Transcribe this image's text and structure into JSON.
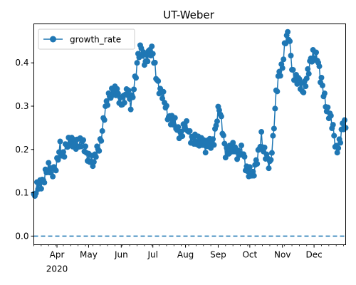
{
  "chart_data": {
    "type": "line",
    "title": "UT-Weber",
    "xlabel": "",
    "ylabel": "",
    "x_start": "2020-03-10",
    "x_end": "2020-12-31",
    "xlim": [
      "2020-03-10",
      "2020-12-31"
    ],
    "ylim": [
      -0.02,
      0.49
    ],
    "grid": false,
    "legend_position": "top-left",
    "x_ticks": [
      {
        "date": "2020-04-01",
        "label": "Apr",
        "sublabel": "2020"
      },
      {
        "date": "2020-05-01",
        "label": "May",
        "sublabel": ""
      },
      {
        "date": "2020-06-01",
        "label": "Jun",
        "sublabel": ""
      },
      {
        "date": "2020-07-01",
        "label": "Jul",
        "sublabel": ""
      },
      {
        "date": "2020-08-01",
        "label": "Aug",
        "sublabel": ""
      },
      {
        "date": "2020-09-01",
        "label": "Sep",
        "sublabel": ""
      },
      {
        "date": "2020-10-01",
        "label": "Oct",
        "sublabel": ""
      },
      {
        "date": "2020-11-01",
        "label": "Nov",
        "sublabel": ""
      },
      {
        "date": "2020-12-01",
        "label": "Dec",
        "sublabel": ""
      }
    ],
    "y_ticks": [
      0.0,
      0.1,
      0.2,
      0.3,
      0.4
    ],
    "y_tick_labels": [
      "0.0",
      "0.1",
      "0.2",
      "0.3",
      "0.4"
    ],
    "reference_line": {
      "y": 0.0,
      "style": "dashed"
    },
    "series": [
      {
        "name": "growth_rate",
        "color": "#1f77b4",
        "marker": "circle",
        "anchors": [
          [
            "2020-03-10",
            0.09
          ],
          [
            "2020-03-14",
            0.11
          ],
          [
            "2020-03-18",
            0.13
          ],
          [
            "2020-03-22",
            0.15
          ],
          [
            "2020-03-27",
            0.15
          ],
          [
            "2020-04-01",
            0.17
          ],
          [
            "2020-04-04",
            0.2
          ],
          [
            "2020-04-06",
            0.18
          ],
          [
            "2020-04-10",
            0.22
          ],
          [
            "2020-04-15",
            0.21
          ],
          [
            "2020-04-20",
            0.22
          ],
          [
            "2020-04-25",
            0.21
          ],
          [
            "2020-04-30",
            0.19
          ],
          [
            "2020-05-03",
            0.18
          ],
          [
            "2020-05-06",
            0.16
          ],
          [
            "2020-05-08",
            0.19
          ],
          [
            "2020-05-12",
            0.22
          ],
          [
            "2020-05-15",
            0.26
          ],
          [
            "2020-05-18",
            0.3
          ],
          [
            "2020-05-21",
            0.33
          ],
          [
            "2020-05-24",
            0.34
          ],
          [
            "2020-05-27",
            0.33
          ],
          [
            "2020-05-31",
            0.31
          ],
          [
            "2020-06-03",
            0.32
          ],
          [
            "2020-06-07",
            0.33
          ],
          [
            "2020-06-10",
            0.3
          ],
          [
            "2020-06-13",
            0.35
          ],
          [
            "2020-06-17",
            0.41
          ],
          [
            "2020-06-20",
            0.43
          ],
          [
            "2020-06-23",
            0.41
          ],
          [
            "2020-06-27",
            0.42
          ],
          [
            "2020-07-01",
            0.42
          ],
          [
            "2020-07-04",
            0.38
          ],
          [
            "2020-07-08",
            0.33
          ],
          [
            "2020-07-12",
            0.31
          ],
          [
            "2020-07-16",
            0.28
          ],
          [
            "2020-07-20",
            0.26
          ],
          [
            "2020-07-24",
            0.25
          ],
          [
            "2020-07-28",
            0.24
          ],
          [
            "2020-08-03",
            0.25
          ],
          [
            "2020-08-07",
            0.23
          ],
          [
            "2020-08-12",
            0.21
          ],
          [
            "2020-08-17",
            0.23
          ],
          [
            "2020-08-20",
            0.2
          ],
          [
            "2020-08-24",
            0.21
          ],
          [
            "2020-08-28",
            0.23
          ],
          [
            "2020-08-31",
            0.27
          ],
          [
            "2020-09-02",
            0.29
          ],
          [
            "2020-09-05",
            0.25
          ],
          [
            "2020-09-08",
            0.2
          ],
          [
            "2020-09-12",
            0.19
          ],
          [
            "2020-09-16",
            0.21
          ],
          [
            "2020-09-20",
            0.19
          ],
          [
            "2020-09-24",
            0.19
          ],
          [
            "2020-09-28",
            0.16
          ],
          [
            "2020-10-01",
            0.15
          ],
          [
            "2020-10-04",
            0.13
          ],
          [
            "2020-10-07",
            0.17
          ],
          [
            "2020-10-10",
            0.21
          ],
          [
            "2020-10-12",
            0.23
          ],
          [
            "2020-10-14",
            0.19
          ],
          [
            "2020-10-17",
            0.18
          ],
          [
            "2020-10-20",
            0.17
          ],
          [
            "2020-10-23",
            0.22
          ],
          [
            "2020-10-26",
            0.32
          ],
          [
            "2020-10-29",
            0.38
          ],
          [
            "2020-11-01",
            0.4
          ],
          [
            "2020-11-04",
            0.45
          ],
          [
            "2020-11-07",
            0.46
          ],
          [
            "2020-11-09",
            0.42
          ],
          [
            "2020-11-11",
            0.38
          ],
          [
            "2020-11-14",
            0.36
          ],
          [
            "2020-11-17",
            0.35
          ],
          [
            "2020-11-20",
            0.34
          ],
          [
            "2020-11-23",
            0.36
          ],
          [
            "2020-11-26",
            0.38
          ],
          [
            "2020-11-30",
            0.42
          ],
          [
            "2020-12-04",
            0.42
          ],
          [
            "2020-12-07",
            0.36
          ],
          [
            "2020-12-10",
            0.33
          ],
          [
            "2020-12-13",
            0.3
          ],
          [
            "2020-12-16",
            0.28
          ],
          [
            "2020-12-19",
            0.24
          ],
          [
            "2020-12-22",
            0.2
          ],
          [
            "2020-12-25",
            0.22
          ],
          [
            "2020-12-28",
            0.25
          ],
          [
            "2020-12-31",
            0.25
          ]
        ]
      }
    ]
  }
}
